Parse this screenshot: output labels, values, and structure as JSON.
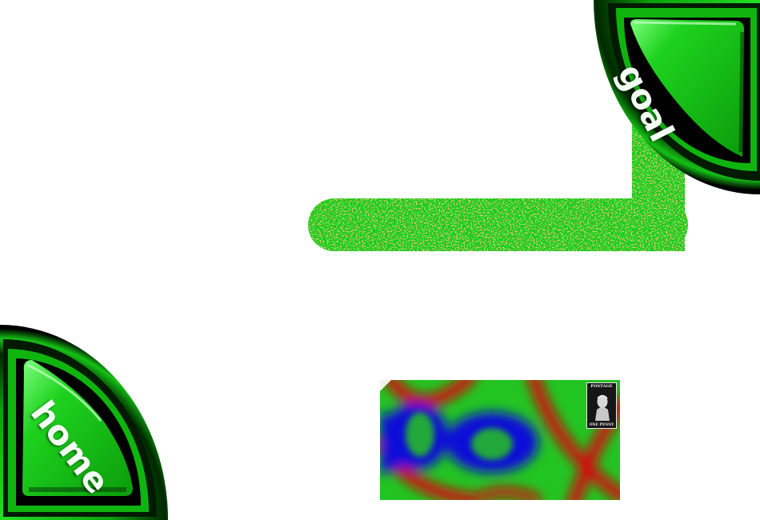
{
  "goal": {
    "label": "goal",
    "icon": "quarter-disc-goal-button"
  },
  "home": {
    "label": "home",
    "icon": "quarter-disc-home-button"
  },
  "stamp": {
    "top_text": "POSTAGE",
    "bottom_text": "ONE PENNY",
    "icon": "penny-black-stamp"
  },
  "colors": {
    "button_green": "#1fd61f",
    "button_dark": "#003300",
    "track_green": "#16cc16",
    "track_speckle": "#b89a3a",
    "pattern_red": "#cc1010",
    "pattern_green": "#22c422",
    "pattern_blue": "#0a10d8"
  }
}
